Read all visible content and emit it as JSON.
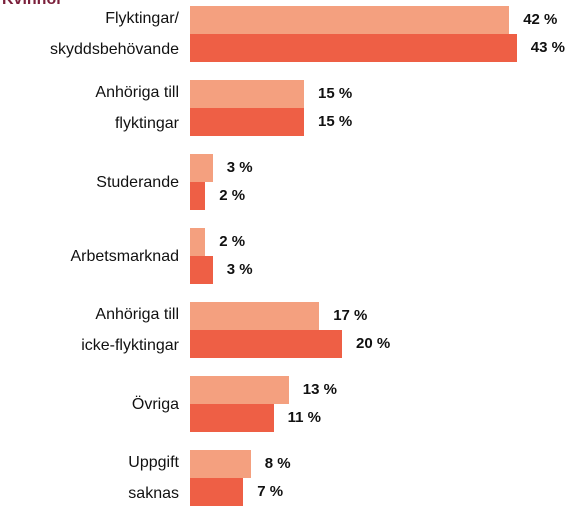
{
  "chart_data": {
    "type": "bar",
    "orientation": "horizontal",
    "title": "Kvinnor",
    "categories": [
      "Flyktingar/\nskyddsbehövande",
      "Anhöriga till\nflyktingar",
      "Studerande",
      "Arbetsmarknad",
      "Anhöriga till\nicke-flyktingar",
      "Övriga",
      "Uppgift\nsaknas"
    ],
    "series": [
      {
        "color": "#f4a07f",
        "values": [
          42,
          15,
          3,
          2,
          17,
          13,
          8
        ],
        "value_labels": [
          "42 %",
          "15 %",
          "3 %",
          "2 %",
          "17 %",
          "13 %",
          "8 %"
        ]
      },
      {
        "color": "#ee5f45",
        "values": [
          43,
          15,
          2,
          3,
          20,
          11,
          7
        ],
        "value_labels": [
          "43 %",
          "15 %",
          "2 %",
          "3 %",
          "20 %",
          "11 %",
          "7 %"
        ]
      }
    ]
  }
}
